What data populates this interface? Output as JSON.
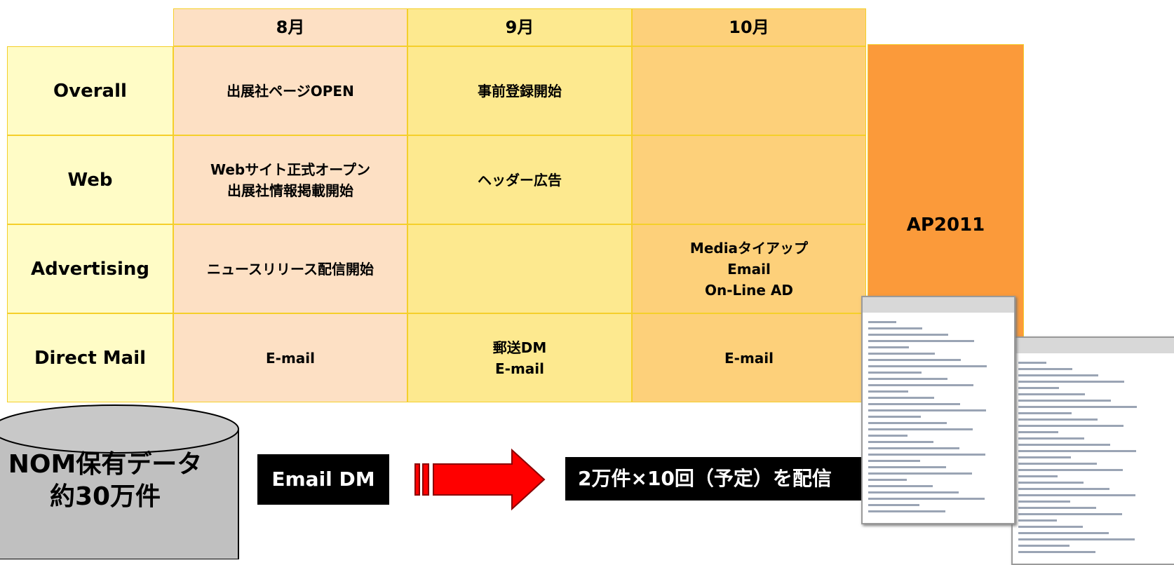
{
  "table": {
    "columns": [
      "8月",
      "9月",
      "10月"
    ],
    "rows": [
      {
        "label": "Overall",
        "cells": [
          [
            "出展社ページOPEN"
          ],
          [
            "事前登録開始"
          ],
          []
        ]
      },
      {
        "label": "Web",
        "cells": [
          [
            "Webサイト正式オープン",
            "出展社情報掲載開始"
          ],
          [
            "ヘッダー広告"
          ],
          []
        ]
      },
      {
        "label": "Advertising",
        "cells": [
          [
            "ニュースリリース配信開始"
          ],
          [],
          [
            "Mediaタイアップ",
            "Email",
            "On-Line AD"
          ]
        ]
      },
      {
        "label": "Direct Mail",
        "cells": [
          [
            "E-mail"
          ],
          [
            "郵送DM",
            "E-mail"
          ],
          [
            "E-mail"
          ]
        ]
      }
    ]
  },
  "side_label": "AP2011",
  "database": [
    "NOM保有データ",
    "約30万件"
  ],
  "email_dm": "Email DM",
  "delivery": "2万件×10回（予定）を配信"
}
